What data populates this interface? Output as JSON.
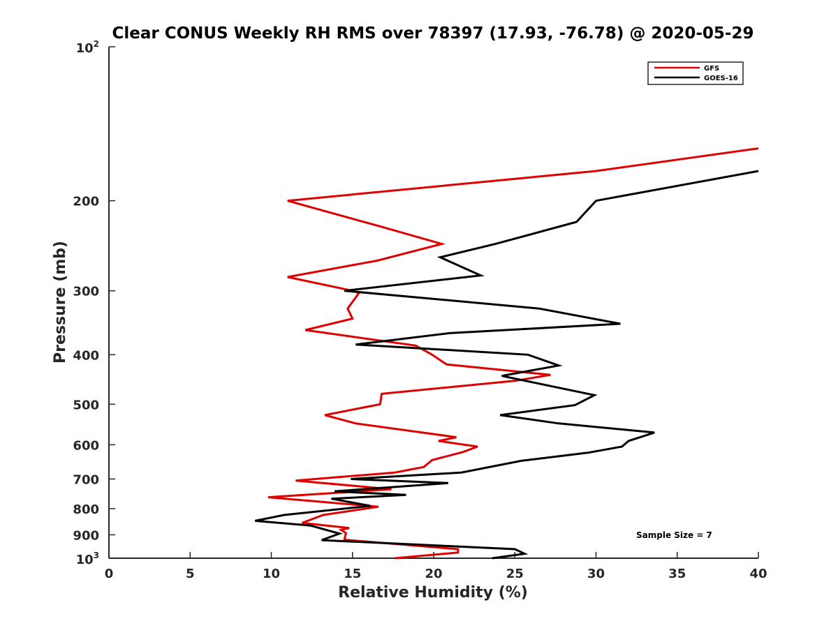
{
  "chart_data": {
    "type": "line",
    "title": "Clear CONUS Weekly RH RMS over 78397 (17.93, -76.78) @ 2020-05-29",
    "xlabel": "Relative Humidity (%)",
    "ylabel": "Pressure (mb)",
    "xlim": [
      0,
      40
    ],
    "ylim": [
      100,
      1000
    ],
    "yscale": "log",
    "y_reversed": true,
    "x_ticks": [
      0,
      5,
      10,
      15,
      20,
      25,
      30,
      35,
      40
    ],
    "x_tick_labels": [
      "0",
      "5",
      "10",
      "15",
      "20",
      "25",
      "30",
      "35",
      "40"
    ],
    "y_ticks": [
      200,
      300,
      400,
      500,
      600,
      700,
      800,
      900
    ],
    "y_tick_labels": [
      "200",
      "300",
      "400",
      "500",
      "600",
      "700",
      "800",
      "900"
    ],
    "y_top_label": {
      "base": "10",
      "exp": "2"
    },
    "y_bottom_label": {
      "base": "10",
      "exp": "3"
    },
    "legend_position": "top-right",
    "annotation": "Sample Size = 7",
    "series": [
      {
        "name": "GFS",
        "color": "#e00000",
        "points": [
          [
            40.0,
            158
          ],
          [
            30.0,
            175
          ],
          [
            11.0,
            200
          ],
          [
            16.8,
            225
          ],
          [
            20.5,
            243
          ],
          [
            16.5,
            262
          ],
          [
            11.0,
            282
          ],
          [
            15.0,
            300
          ],
          [
            15.4,
            303
          ],
          [
            14.7,
            325
          ],
          [
            15.0,
            340
          ],
          [
            12.1,
            358
          ],
          [
            18.9,
            384
          ],
          [
            19.9,
            400
          ],
          [
            20.8,
            418
          ],
          [
            27.2,
            438
          ],
          [
            25.0,
            450
          ],
          [
            16.8,
            477
          ],
          [
            16.7,
            500
          ],
          [
            13.3,
            525
          ],
          [
            15.2,
            545
          ],
          [
            21.4,
            580
          ],
          [
            20.3,
            590
          ],
          [
            22.7,
            605
          ],
          [
            21.8,
            620
          ],
          [
            19.9,
            643
          ],
          [
            19.4,
            663
          ],
          [
            17.6,
            680
          ],
          [
            11.5,
            705
          ],
          [
            17.4,
            733
          ],
          [
            9.8,
            760
          ],
          [
            16.6,
            793
          ],
          [
            13.2,
            823
          ],
          [
            11.9,
            853
          ],
          [
            14.8,
            873
          ],
          [
            14.3,
            880
          ],
          [
            14.6,
            893
          ],
          [
            14.5,
            920
          ],
          [
            21.5,
            960
          ],
          [
            21.5,
            975
          ],
          [
            17.6,
            1000
          ]
        ]
      },
      {
        "name": "GOES-16",
        "color": "#000000",
        "points": [
          [
            40.0,
            175
          ],
          [
            30.0,
            200
          ],
          [
            28.8,
            220
          ],
          [
            23.8,
            243
          ],
          [
            20.4,
            258
          ],
          [
            22.9,
            280
          ],
          [
            14.5,
            300
          ],
          [
            26.5,
            325
          ],
          [
            31.5,
            348
          ],
          [
            21.0,
            363
          ],
          [
            15.2,
            382
          ],
          [
            25.8,
            400
          ],
          [
            27.7,
            420
          ],
          [
            24.2,
            440
          ],
          [
            29.9,
            480
          ],
          [
            28.7,
            502
          ],
          [
            24.1,
            525
          ],
          [
            27.7,
            545
          ],
          [
            33.6,
            568
          ],
          [
            32.0,
            590
          ],
          [
            31.6,
            605
          ],
          [
            29.5,
            622
          ],
          [
            25.4,
            645
          ],
          [
            21.7,
            680
          ],
          [
            14.9,
            700
          ],
          [
            20.9,
            713
          ],
          [
            13.9,
            740
          ],
          [
            18.3,
            752
          ],
          [
            13.7,
            765
          ],
          [
            16.1,
            790
          ],
          [
            10.8,
            823
          ],
          [
            9.0,
            845
          ],
          [
            12.4,
            863
          ],
          [
            14.2,
            895
          ],
          [
            13.1,
            922
          ],
          [
            25.0,
            960
          ],
          [
            25.6,
            980
          ],
          [
            23.6,
            1000
          ]
        ]
      }
    ]
  }
}
